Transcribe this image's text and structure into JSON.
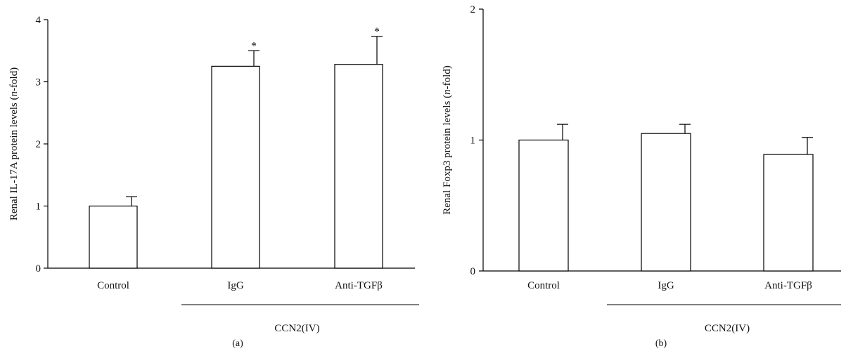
{
  "chart_data": [
    {
      "type": "bar",
      "panel_label": "(a)",
      "categories": [
        "Control",
        "IgG",
        "Anti-TGFβ"
      ],
      "values": [
        1.0,
        3.25,
        3.28
      ],
      "errors": [
        0.15,
        0.25,
        0.45
      ],
      "significance": [
        "",
        "*",
        "*"
      ],
      "group_label": "CCN2(IV)",
      "ylabel": "Renal IL-17A protein levels (n-fold)",
      "ylabel_parts": [
        "Renal IL-17A protein levels (",
        "n",
        "-fold)"
      ],
      "ylim": [
        0,
        4
      ],
      "yticks": [
        0,
        1,
        2,
        3,
        4
      ],
      "grid": false,
      "colors": {
        "bar_fill": "#ffffff",
        "bar_stroke": "#000000"
      }
    },
    {
      "type": "bar",
      "panel_label": "(b)",
      "categories": [
        "Control",
        "IgG",
        "Anti-TGFβ"
      ],
      "values": [
        1.0,
        1.05,
        0.89
      ],
      "errors": [
        0.12,
        0.07,
        0.13
      ],
      "significance": [
        "",
        "",
        ""
      ],
      "group_label": "CCN2(IV)",
      "ylabel": "Renal Foxp3 protein levels (n-fold)",
      "ylabel_parts": [
        "Renal Foxp3 protein levels (",
        "n",
        "-fold)"
      ],
      "ylim": [
        0,
        2
      ],
      "yticks": [
        0,
        1,
        2
      ],
      "grid": false,
      "colors": {
        "bar_fill": "#ffffff",
        "bar_stroke": "#000000"
      }
    }
  ]
}
